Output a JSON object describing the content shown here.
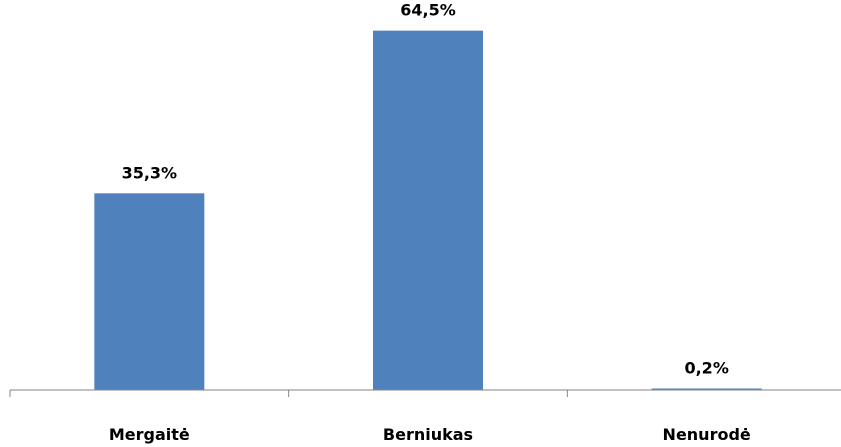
{
  "colors": {
    "bar": "#4f81bd",
    "axis": "#868686"
  },
  "chart_data": {
    "type": "bar",
    "title": "",
    "xlabel": "",
    "ylabel": "",
    "categories": [
      "Mergaitė",
      "Berniukas",
      "Nenurodė"
    ],
    "values": [
      35.3,
      64.5,
      0.2
    ],
    "data_labels": [
      "35,3%",
      "64,5%",
      "0,2%"
    ],
    "ylim": [
      0,
      70
    ],
    "grid": false,
    "legend": "none"
  }
}
